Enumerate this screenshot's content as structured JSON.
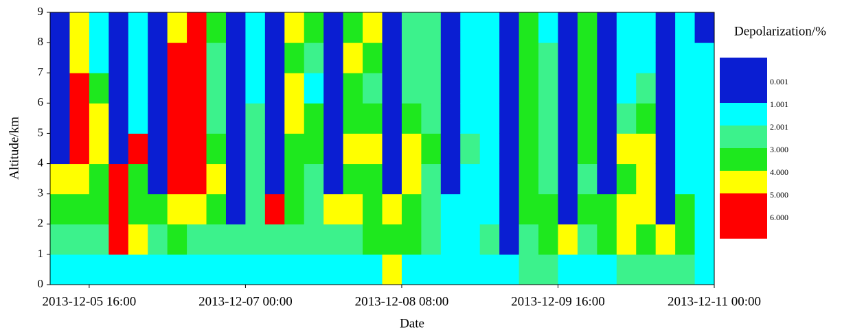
{
  "chart_data": {
    "type": "heatmap",
    "xlabel": "Date",
    "ylabel": "Altitude/km",
    "x": [
      "2013-12-05 08:00",
      "2013-12-05 12:00",
      "2013-12-05 16:00",
      "2013-12-05 20:00",
      "2013-12-06 00:00",
      "2013-12-06 04:00",
      "2013-12-06 08:00",
      "2013-12-06 12:00",
      "2013-12-06 16:00",
      "2013-12-06 20:00",
      "2013-12-07 00:00",
      "2013-12-07 04:00",
      "2013-12-07 08:00",
      "2013-12-07 12:00",
      "2013-12-07 16:00",
      "2013-12-07 20:00",
      "2013-12-08 00:00",
      "2013-12-08 04:00",
      "2013-12-08 08:00",
      "2013-12-08 12:00",
      "2013-12-08 16:00",
      "2013-12-08 20:00",
      "2013-12-09 00:00",
      "2013-12-09 04:00",
      "2013-12-09 08:00",
      "2013-12-09 12:00",
      "2013-12-09 16:00",
      "2013-12-09 20:00",
      "2013-12-10 00:00",
      "2013-12-10 04:00",
      "2013-12-10 08:00",
      "2013-12-10 12:00",
      "2013-12-10 16:00",
      "2013-12-10 20:00"
    ],
    "xlim": [
      "2013-12-05 08:00",
      "2013-12-11 00:00"
    ],
    "xticks": [
      "2013-12-05 16:00",
      "2013-12-07 00:00",
      "2013-12-08 08:00",
      "2013-12-09 16:00",
      "2013-12-11 00:00"
    ],
    "y": [
      0.5,
      1.5,
      2.5,
      3.5,
      4.5,
      5.5,
      6.5,
      7.5,
      8.5
    ],
    "ylim": [
      0,
      9
    ],
    "yticks": [
      0,
      1,
      2,
      3,
      4,
      5,
      6,
      7,
      8,
      9
    ],
    "values": [
      [
        1.5,
        2.5,
        3.5,
        4.5,
        0.5,
        0.5,
        0.5,
        0.5,
        0.5
      ],
      [
        1.5,
        2.5,
        3.5,
        4.5,
        5.5,
        5.5,
        5.5,
        4.5,
        4.5
      ],
      [
        1.5,
        2.5,
        3.5,
        3.5,
        4.5,
        4.5,
        3.5,
        1.5,
        1.5
      ],
      [
        1.5,
        5.5,
        5.5,
        5.5,
        0.5,
        0.5,
        0.5,
        0.5,
        0.5
      ],
      [
        1.5,
        4.5,
        3.5,
        3.5,
        5.5,
        1.5,
        1.5,
        1.5,
        1.5
      ],
      [
        1.5,
        2.5,
        3.5,
        0.5,
        0.5,
        0.5,
        0.5,
        0.5,
        0.5
      ],
      [
        1.5,
        3.5,
        4.5,
        5.5,
        5.5,
        5.5,
        5.5,
        5.5,
        4.5
      ],
      [
        1.5,
        2.5,
        4.5,
        5.5,
        5.5,
        5.5,
        5.5,
        5.5,
        5.5
      ],
      [
        1.5,
        2.5,
        3.5,
        4.5,
        3.5,
        2.5,
        2.5,
        2.5,
        3.5
      ],
      [
        1.5,
        2.5,
        0.5,
        0.5,
        0.5,
        0.5,
        0.5,
        0.5,
        0.5
      ],
      [
        1.5,
        2.5,
        2.5,
        2.5,
        2.5,
        2.5,
        1.5,
        1.5,
        1.5
      ],
      [
        1.5,
        2.5,
        5.5,
        0.5,
        0.5,
        0.5,
        0.5,
        0.5,
        0.5
      ],
      [
        1.5,
        2.5,
        3.5,
        3.5,
        3.5,
        4.5,
        4.5,
        3.5,
        4.5
      ],
      [
        1.5,
        2.5,
        2.5,
        2.5,
        3.5,
        3.5,
        1.5,
        2.5,
        3.5
      ],
      [
        1.5,
        2.5,
        4.5,
        0.5,
        0.5,
        0.5,
        0.5,
        0.5,
        0.5
      ],
      [
        1.5,
        2.5,
        4.5,
        3.5,
        4.5,
        3.5,
        3.5,
        4.5,
        3.5
      ],
      [
        1.5,
        3.5,
        3.5,
        3.5,
        4.5,
        3.5,
        2.5,
        3.5,
        4.5
      ],
      [
        4.5,
        3.5,
        4.5,
        0.5,
        0.5,
        0.5,
        0.5,
        0.5,
        0.5
      ],
      [
        1.5,
        3.5,
        3.5,
        4.5,
        4.5,
        3.5,
        2.5,
        2.5,
        2.5
      ],
      [
        1.5,
        2.5,
        2.5,
        2.5,
        3.5,
        2.5,
        2.5,
        2.5,
        2.5
      ],
      [
        1.5,
        1.5,
        1.5,
        0.5,
        0.5,
        0.5,
        0.5,
        0.5,
        0.5
      ],
      [
        1.5,
        1.5,
        1.5,
        1.5,
        2.5,
        1.5,
        1.5,
        1.5,
        1.5
      ],
      [
        1.5,
        2.5,
        1.5,
        1.5,
        1.5,
        1.5,
        1.5,
        1.5,
        1.5
      ],
      [
        1.5,
        0.5,
        0.5,
        0.5,
        0.5,
        0.5,
        0.5,
        0.5,
        0.5
      ],
      [
        2.5,
        2.5,
        3.5,
        3.5,
        3.5,
        3.5,
        3.5,
        3.5,
        3.5
      ],
      [
        2.5,
        3.5,
        3.5,
        2.5,
        2.5,
        2.5,
        2.5,
        2.5,
        1.5
      ],
      [
        1.5,
        4.5,
        0.5,
        0.5,
        0.5,
        0.5,
        0.5,
        0.5,
        0.5
      ],
      [
        1.5,
        2.5,
        3.5,
        2.5,
        3.5,
        3.5,
        3.5,
        3.5,
        3.5
      ],
      [
        1.5,
        3.5,
        3.5,
        0.5,
        0.5,
        0.5,
        0.5,
        0.5,
        0.5
      ],
      [
        2.5,
        4.5,
        4.5,
        3.5,
        4.5,
        2.5,
        1.5,
        1.5,
        1.5
      ],
      [
        2.5,
        3.5,
        4.5,
        4.5,
        4.5,
        3.5,
        2.5,
        1.5,
        1.5
      ],
      [
        2.5,
        4.5,
        0.5,
        0.5,
        0.5,
        0.5,
        0.5,
        0.5,
        0.5
      ],
      [
        2.5,
        3.5,
        3.5,
        1.5,
        1.5,
        1.5,
        1.5,
        1.5,
        1.5
      ],
      [
        1.5,
        1.5,
        1.5,
        1.5,
        1.5,
        1.5,
        1.5,
        1.5,
        0.5
      ]
    ],
    "colorbar": {
      "title": "Depolarization/%",
      "levels": [
        {
          "value": 0.001,
          "label": "0.001"
        },
        {
          "value": 1.001,
          "label": "1.001"
        },
        {
          "value": 2.001,
          "label": "2.001"
        },
        {
          "value": 3,
          "label": "3.000"
        },
        {
          "value": 4,
          "label": "4.000"
        },
        {
          "value": 5,
          "label": "5.000"
        },
        {
          "value": 6,
          "label": "6.000"
        }
      ],
      "colors": [
        "#0a1ed2",
        "#00ffff",
        "#3cf28c",
        "#1ee81e",
        "#ffff00",
        "#ff0000"
      ]
    }
  }
}
